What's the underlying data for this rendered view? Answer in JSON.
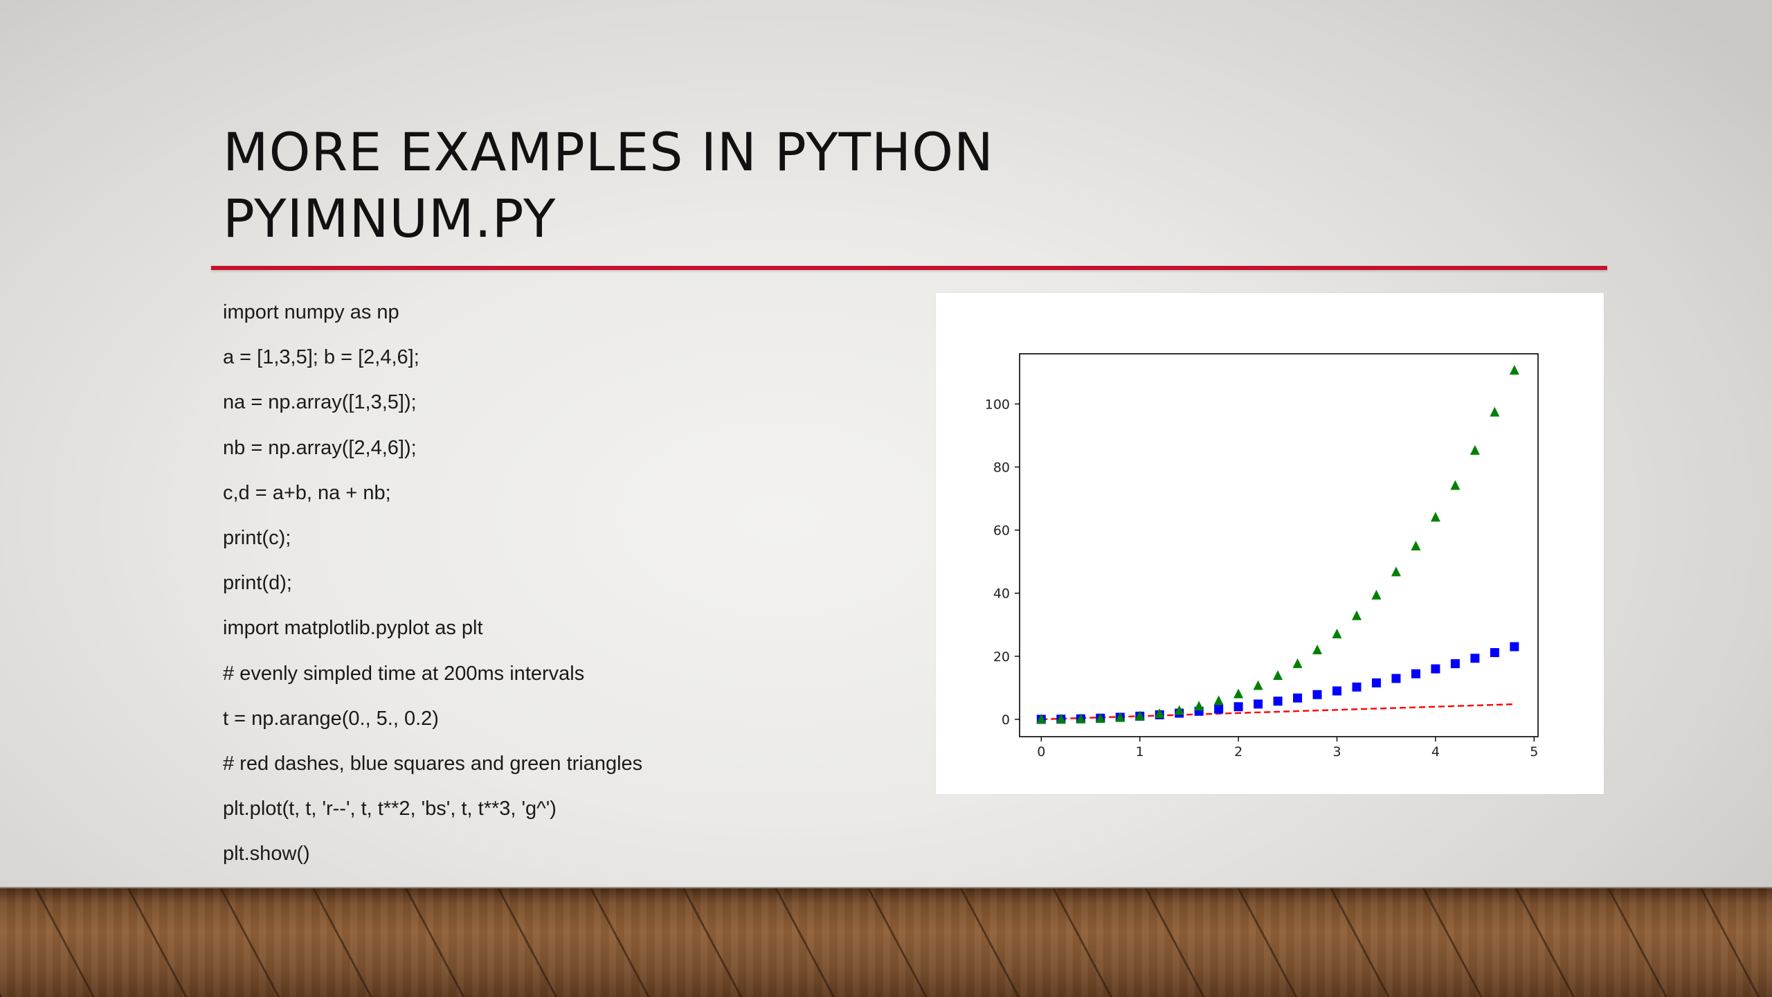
{
  "slide": {
    "title_line1": "MORE EXAMPLES IN PYTHON",
    "title_line2": "PYIMNUM.PY",
    "accent_color": "#c8102e",
    "code_lines": [
      "import numpy as np",
      "a = [1,3,5]; b = [2,4,6];",
      "na = np.array([1,3,5]);",
      "nb = np.array([2,4,6]);",
      "c,d = a+b, na + nb;",
      "print(c);",
      "print(d);",
      "import matplotlib.pyplot as plt",
      "# evenly simpled time at 200ms intervals",
      "t = np.arange(0., 5., 0.2)",
      "# red dashes, blue squares and green triangles",
      "plt.plot(t, t, 'r--', t, t**2, 'bs', t, t**3, 'g^')",
      "plt.show()"
    ]
  },
  "chart_data": {
    "type": "line",
    "title": "",
    "xlabel": "",
    "ylabel": "",
    "xlim": [
      -0.22,
      5.04
    ],
    "ylim": [
      -5.5,
      115.9
    ],
    "x_ticks": [
      0,
      1,
      2,
      3,
      4,
      5
    ],
    "y_ticks": [
      0,
      20,
      40,
      60,
      80,
      100
    ],
    "grid": false,
    "x": [
      0,
      0.2,
      0.4,
      0.6,
      0.8,
      1.0,
      1.2,
      1.4,
      1.6,
      1.8,
      2.0,
      2.2,
      2.4,
      2.6,
      2.8,
      3.0,
      3.2,
      3.4,
      3.6,
      3.8,
      4.0,
      4.2,
      4.4,
      4.6,
      4.8
    ],
    "series": [
      {
        "style": "red dashed line",
        "color": "#ff0000",
        "marker": "none",
        "values": [
          0,
          0.2,
          0.4,
          0.6,
          0.8,
          1.0,
          1.2,
          1.4,
          1.6,
          1.8,
          2.0,
          2.2,
          2.4,
          2.6,
          2.8,
          3.0,
          3.2,
          3.4,
          3.6,
          3.8,
          4.0,
          4.2,
          4.4,
          4.6,
          4.8
        ]
      },
      {
        "style": "blue squares",
        "color": "#0000ff",
        "marker": "square",
        "values": [
          0,
          0.04,
          0.16,
          0.36,
          0.64,
          1.0,
          1.44,
          1.96,
          2.56,
          3.24,
          4.0,
          4.84,
          5.76,
          6.76,
          7.84,
          9.0,
          10.24,
          11.56,
          12.96,
          14.44,
          16.0,
          17.64,
          19.36,
          21.16,
          23.04
        ]
      },
      {
        "style": "green triangles",
        "color": "#008000",
        "marker": "triangle",
        "values": [
          0,
          0.008,
          0.064,
          0.216,
          0.512,
          1.0,
          1.728,
          2.744,
          4.096,
          5.832,
          8.0,
          10.648,
          13.824,
          17.576,
          21.952,
          27.0,
          32.768,
          39.304,
          46.656,
          54.872,
          64.0,
          74.088,
          85.184,
          97.336,
          110.592
        ]
      }
    ]
  }
}
